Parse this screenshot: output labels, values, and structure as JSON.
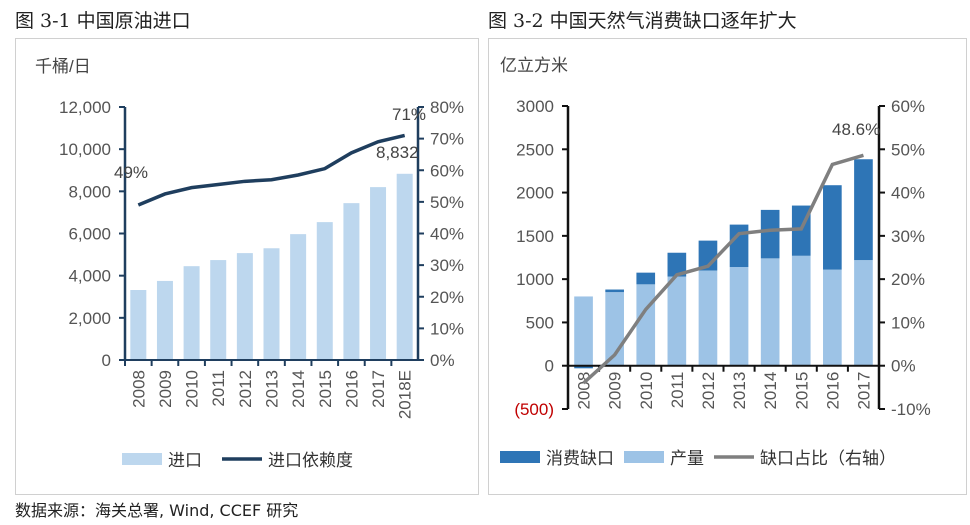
{
  "chart_data": [
    {
      "type": "bar+line",
      "title": "图 3-1  中国原油进口",
      "ylabel": "千桶/日",
      "categories": [
        "2008",
        "2009",
        "2010",
        "2011",
        "2012",
        "2013",
        "2014",
        "2015",
        "2016",
        "2017",
        "2018E"
      ],
      "series": [
        {
          "name": "进口",
          "type": "bar",
          "axis": "left",
          "color": "#bdd7ee",
          "values": [
            3320,
            3750,
            4450,
            4740,
            5070,
            5300,
            5970,
            6540,
            7440,
            8200,
            8832
          ]
        },
        {
          "name": "进口依赖度",
          "type": "line",
          "axis": "right",
          "color": "#1f3e5e",
          "values": [
            49,
            52.5,
            54.5,
            55.5,
            56.5,
            57,
            58.5,
            60.5,
            65.5,
            69,
            71
          ]
        }
      ],
      "yticks": [
        "0",
        "2,000",
        "4,000",
        "6,000",
        "8,000",
        "10,000",
        "12,000"
      ],
      "ylim": [
        0,
        12000
      ],
      "y2ticks": [
        "0%",
        "10%",
        "20%",
        "30%",
        "40%",
        "50%",
        "60%",
        "70%",
        "80%"
      ],
      "y2lim": [
        0,
        80
      ],
      "annotations": [
        "49%",
        "71%",
        "8,832"
      ],
      "legend": "bottom"
    },
    {
      "type": "stacked-bar+line",
      "title": "图 3-2  中国天然气消费缺口逐年扩大",
      "ylabel": "亿立方米",
      "categories": [
        "2008",
        "2009",
        "2010",
        "2011",
        "2012",
        "2013",
        "2014",
        "2015",
        "2016",
        "2017"
      ],
      "series": [
        {
          "name": "消费缺口",
          "type": "bar",
          "axis": "left",
          "color": "#2e75b6",
          "values": [
            -30,
            30,
            135,
            275,
            345,
            490,
            560,
            580,
            975,
            1165
          ]
        },
        {
          "name": "产量",
          "type": "bar",
          "axis": "left",
          "color": "#9dc3e6",
          "values": [
            800,
            850,
            940,
            1030,
            1100,
            1140,
            1240,
            1270,
            1110,
            1220
          ]
        },
        {
          "name": "缺口占比（右轴）",
          "type": "line",
          "axis": "right",
          "color": "#7f7f7f",
          "values": [
            -4,
            2.5,
            13,
            21,
            23,
            30.5,
            31.3,
            31.6,
            46.5,
            48.6
          ]
        }
      ],
      "yticks": [
        "(500)",
        "0",
        "500",
        "1000",
        "1500",
        "2000",
        "2500",
        "3000"
      ],
      "ylim": [
        -500,
        3000
      ],
      "y2ticks": [
        "-10%",
        "0%",
        "10%",
        "20%",
        "30%",
        "40%",
        "50%",
        "60%"
      ],
      "y2lim": [
        -10,
        60
      ],
      "annotations": [
        "48.6%"
      ],
      "legend": "bottom"
    }
  ],
  "footer": "数据来源：海关总署, Wind, CCEF 研究"
}
